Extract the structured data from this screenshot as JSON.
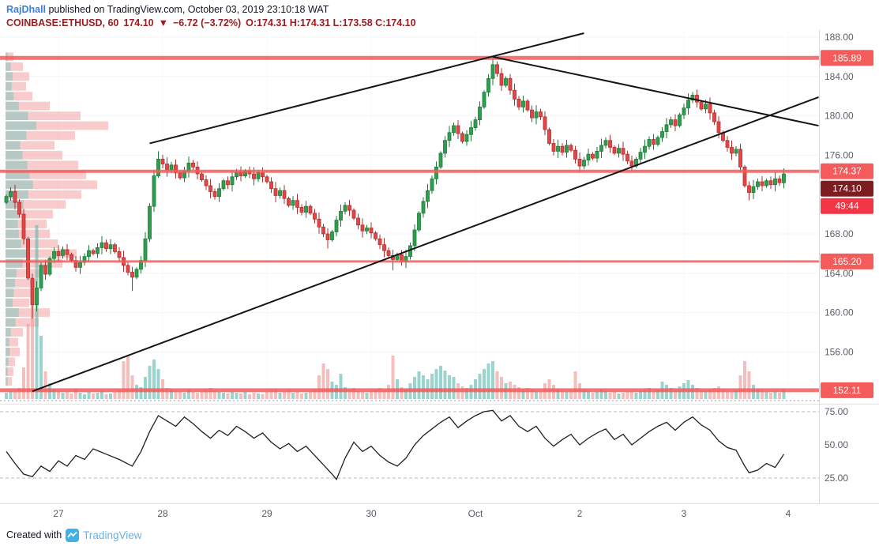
{
  "header": {
    "author": "RajDhall",
    "published_text": "published on TradingView.com, October 03, 2019 23:10:18 WAT",
    "symbol": "COINBASE:ETHUSD, 60",
    "price": "174.10",
    "direction": "▼",
    "change": "−6.72 (−3.72%)",
    "ohlc": "O:174.31 H:174.31 L:173.58 C:174.10"
  },
  "footer": {
    "created_with": "Created with",
    "brand": "TradingView"
  },
  "axis": {
    "price_ticks": [
      {
        "label": "188.00",
        "price": 188
      },
      {
        "label": "184.00",
        "price": 184
      },
      {
        "label": "180.00",
        "price": 180
      },
      {
        "label": "176.00",
        "price": 176
      },
      {
        "label": "168.00",
        "price": 168
      },
      {
        "label": "164.00",
        "price": 164
      },
      {
        "label": "160.00",
        "price": 160
      },
      {
        "label": "156.00",
        "price": 156
      }
    ],
    "badges": [
      {
        "label": "185.89",
        "price": 185.89,
        "kind": "level"
      },
      {
        "label": "174.37",
        "price": 174.37,
        "kind": "level"
      },
      {
        "label": "174.10",
        "anchor_price": 174.37,
        "offset": 1,
        "kind": "last"
      },
      {
        "label": "49:44",
        "anchor_price": 174.37,
        "offset": 2,
        "kind": "countdown"
      },
      {
        "label": "165.20",
        "price": 165.2,
        "kind": "level"
      },
      {
        "label": "152.11",
        "price": 152.11,
        "kind": "level"
      }
    ],
    "rsi_ticks": [
      {
        "label": "75.00",
        "value": 75
      },
      {
        "label": "50.00",
        "value": 50
      },
      {
        "label": "25.00",
        "value": 25
      }
    ],
    "time_labels": [
      {
        "label": "27",
        "hour": 12
      },
      {
        "label": "28",
        "hour": 36
      },
      {
        "label": "29",
        "hour": 60
      },
      {
        "label": "30",
        "hour": 84
      },
      {
        "label": "Oct",
        "hour": 108
      },
      {
        "label": "2",
        "hour": 132
      },
      {
        "label": "3",
        "hour": 156
      },
      {
        "label": "4",
        "hour": 180
      }
    ]
  },
  "chart_data": {
    "type": "candlestick",
    "symbol": "COINBASE:ETHUSD",
    "interval_minutes": 60,
    "visible_price_range": [
      150.8,
      188.7
    ],
    "levels": [
      {
        "price": 185.89,
        "width": 5
      },
      {
        "price": 174.37,
        "width": 4
      },
      {
        "price": 165.2,
        "width": 3
      },
      {
        "price": 152.11,
        "width": 5
      }
    ],
    "trendlines": [
      {
        "name": "wedge-upper-resistance",
        "from": [
          33,
          177.2
        ],
        "to": [
          133,
          188.4
        ]
      },
      {
        "name": "descending-resistance",
        "from": [
          112,
          186.0
        ],
        "to": [
          187,
          179.0
        ]
      },
      {
        "name": "ascending-support",
        "from": [
          6,
          152.0
        ],
        "to": [
          187,
          181.9
        ]
      }
    ],
    "first_open": 171.2,
    "closes": [
      171.8,
      172.3,
      171.2,
      170.0,
      167.5,
      163.5,
      160.8,
      162.5,
      164.8,
      163.9,
      165.5,
      166.2,
      165.8,
      166.4,
      165.9,
      165.3,
      164.6,
      165.1,
      165.7,
      166.3,
      166.0,
      166.6,
      167.1,
      166.5,
      166.9,
      166.2,
      165.6,
      164.8,
      164.1,
      163.6,
      164.4,
      165.3,
      167.5,
      170.8,
      173.9,
      175.6,
      175.1,
      174.5,
      175.0,
      174.2,
      173.7,
      174.4,
      175.2,
      174.8,
      174.1,
      173.5,
      172.9,
      172.3,
      171.8,
      172.6,
      173.4,
      173.0,
      173.8,
      174.3,
      173.9,
      174.4,
      174.1,
      173.6,
      174.2,
      173.8,
      173.3,
      172.6,
      171.9,
      172.4,
      171.6,
      170.9,
      171.4,
      170.7,
      170.2,
      170.8,
      170.1,
      169.5,
      168.7,
      168.0,
      167.4,
      168.2,
      169.4,
      170.3,
      170.9,
      170.4,
      169.6,
      168.9,
      168.3,
      168.6,
      168.1,
      167.5,
      166.9,
      166.3,
      165.8,
      165.4,
      165.9,
      165.2,
      165.7,
      166.8,
      168.4,
      170.1,
      171.3,
      172.4,
      173.6,
      174.8,
      176.2,
      177.5,
      178.3,
      179.0,
      178.2,
      177.4,
      178.1,
      178.8,
      179.6,
      180.9,
      182.4,
      183.8,
      185.2,
      184.3,
      183.1,
      183.8,
      182.6,
      181.7,
      180.9,
      181.5,
      180.6,
      179.8,
      180.4,
      179.9,
      178.6,
      177.2,
      176.4,
      176.9,
      176.3,
      177.0,
      176.5,
      175.6,
      174.9,
      175.5,
      176.1,
      175.7,
      176.4,
      177.0,
      177.5,
      176.8,
      176.2,
      176.7,
      176.1,
      175.4,
      174.9,
      175.6,
      176.3,
      176.9,
      177.6,
      177.1,
      177.8,
      178.4,
      179.1,
      179.6,
      179.0,
      180.1,
      180.8,
      181.6,
      182.1,
      181.4,
      180.7,
      181.2,
      180.3,
      179.4,
      178.3,
      177.5,
      176.8,
      176.2,
      176.6,
      174.8,
      172.9,
      172.2,
      172.8,
      173.3,
      172.9,
      173.4,
      173.0,
      173.6,
      173.2,
      174.1
    ],
    "extreme_wicks": {
      "6": {
        "l": 159.4
      },
      "29": {
        "l": 162.2
      },
      "35": {
        "h": 176.4
      },
      "74": {
        "l": 166.5
      },
      "89": {
        "l": 164.3
      },
      "112": {
        "h": 185.89
      },
      "171": {
        "l": 171.4
      }
    },
    "volume": [
      8,
      10,
      9,
      14,
      40,
      95,
      150,
      220,
      80,
      35,
      20,
      12,
      10,
      8,
      9,
      7,
      12,
      8,
      6,
      9,
      7,
      8,
      10,
      6,
      7,
      9,
      11,
      48,
      55,
      30,
      18,
      15,
      28,
      42,
      50,
      38,
      25,
      14,
      12,
      10,
      9,
      8,
      12,
      9,
      8,
      10,
      12,
      14,
      11,
      9,
      8,
      7,
      9,
      8,
      7,
      9,
      6,
      8,
      7,
      6,
      9,
      11,
      13,
      8,
      10,
      12,
      8,
      9,
      7,
      8,
      10,
      12,
      30,
      45,
      38,
      22,
      18,
      32,
      15,
      12,
      14,
      10,
      9,
      8,
      10,
      12,
      14,
      11,
      18,
      55,
      25,
      15,
      12,
      20,
      28,
      35,
      30,
      25,
      32,
      38,
      42,
      36,
      30,
      28,
      20,
      16,
      14,
      18,
      25,
      32,
      38,
      45,
      48,
      35,
      28,
      20,
      22,
      18,
      15,
      12,
      14,
      12,
      10,
      9,
      20,
      25,
      18,
      12,
      10,
      9,
      11,
      35,
      20,
      12,
      10,
      8,
      9,
      12,
      10,
      8,
      9,
      7,
      8,
      10,
      9,
      8,
      10,
      12,
      14,
      10,
      12,
      22,
      18,
      14,
      12,
      16,
      20,
      24,
      18,
      14,
      12,
      10,
      12,
      14,
      16,
      12,
      10,
      9,
      11,
      30,
      48,
      35,
      18,
      12,
      10,
      9,
      8,
      10,
      8,
      12
    ],
    "volume_profile": {
      "top_price": 186,
      "bin_price_step": 1,
      "widths": [
        10,
        22,
        30,
        26,
        34,
        56,
        95,
        130,
        88,
        62,
        72,
        92,
        102,
        116,
        96,
        76,
        60,
        52,
        56,
        66,
        90,
        72,
        46,
        40,
        34,
        30,
        56,
        42,
        22,
        16,
        18,
        12,
        10,
        8
      ]
    },
    "rsi_anchors": [
      [
        0,
        45
      ],
      [
        2,
        36
      ],
      [
        4,
        28
      ],
      [
        6,
        26
      ],
      [
        8,
        34
      ],
      [
        10,
        30
      ],
      [
        12,
        38
      ],
      [
        14,
        34
      ],
      [
        16,
        42
      ],
      [
        18,
        39
      ],
      [
        20,
        47
      ],
      [
        23,
        43
      ],
      [
        26,
        39
      ],
      [
        29,
        34
      ],
      [
        31,
        45
      ],
      [
        33,
        60
      ],
      [
        35,
        72
      ],
      [
        37,
        68
      ],
      [
        39,
        64
      ],
      [
        41,
        71
      ],
      [
        43,
        66
      ],
      [
        45,
        60
      ],
      [
        47,
        55
      ],
      [
        49,
        61
      ],
      [
        51,
        57
      ],
      [
        53,
        64
      ],
      [
        55,
        60
      ],
      [
        57,
        55
      ],
      [
        59,
        59
      ],
      [
        61,
        52
      ],
      [
        63,
        47
      ],
      [
        65,
        51
      ],
      [
        67,
        45
      ],
      [
        69,
        49
      ],
      [
        71,
        42
      ],
      [
        73,
        35
      ],
      [
        75,
        28
      ],
      [
        76,
        24
      ],
      [
        78,
        40
      ],
      [
        80,
        52
      ],
      [
        82,
        45
      ],
      [
        84,
        49
      ],
      [
        86,
        42
      ],
      [
        88,
        37
      ],
      [
        90,
        34
      ],
      [
        92,
        40
      ],
      [
        94,
        50
      ],
      [
        96,
        57
      ],
      [
        98,
        62
      ],
      [
        100,
        67
      ],
      [
        102,
        71
      ],
      [
        104,
        63
      ],
      [
        106,
        68
      ],
      [
        108,
        72
      ],
      [
        110,
        75
      ],
      [
        112,
        76
      ],
      [
        114,
        68
      ],
      [
        116,
        72
      ],
      [
        118,
        64
      ],
      [
        120,
        60
      ],
      [
        122,
        64
      ],
      [
        124,
        55
      ],
      [
        126,
        49
      ],
      [
        128,
        54
      ],
      [
        130,
        58
      ],
      [
        132,
        50
      ],
      [
        134,
        55
      ],
      [
        136,
        59
      ],
      [
        138,
        62
      ],
      [
        140,
        54
      ],
      [
        142,
        58
      ],
      [
        144,
        50
      ],
      [
        146,
        55
      ],
      [
        148,
        60
      ],
      [
        150,
        64
      ],
      [
        152,
        67
      ],
      [
        154,
        61
      ],
      [
        156,
        67
      ],
      [
        158,
        71
      ],
      [
        160,
        65
      ],
      [
        162,
        61
      ],
      [
        164,
        53
      ],
      [
        166,
        48
      ],
      [
        168,
        46
      ],
      [
        170,
        34
      ],
      [
        171,
        29
      ],
      [
        173,
        31
      ],
      [
        175,
        36
      ],
      [
        177,
        33
      ],
      [
        179,
        43
      ]
    ],
    "colors": {
      "up": "#2f9e4f",
      "up_border": "#1d7a37",
      "down": "#e64545",
      "down_border": "#b02f2f",
      "level": "#f45b5b",
      "level_badge": "#f45b5b",
      "last_badge": "#7c1d21",
      "countdown_badge": "#f23645",
      "trend": "#151515",
      "vol_up": "#63bdb5",
      "vol_down": "#f0a2a0",
      "profile": "#f2a3a2",
      "profile_buy": "#74c5bd",
      "rsi_line": "#1b2026",
      "author_blue": "#3b7de9",
      "header_red": "#9b1b1e",
      "brand_blue": "#68b3e3",
      "logo_blue": "#3fb0e8"
    }
  }
}
